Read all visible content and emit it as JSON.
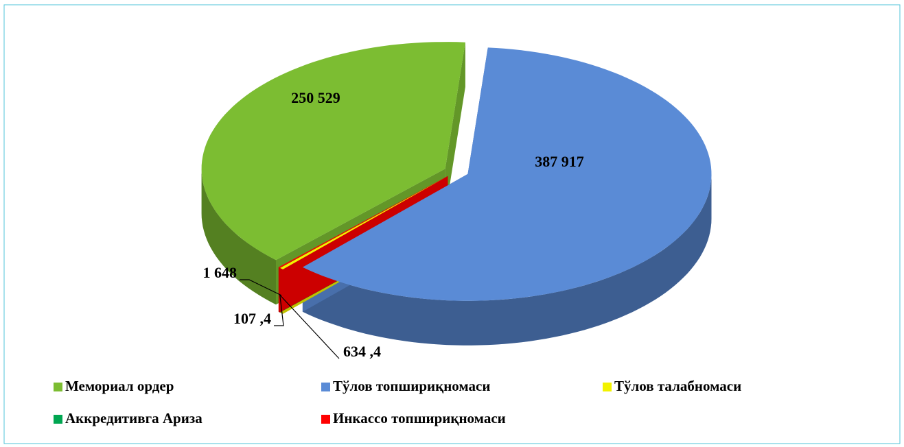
{
  "chart_data": {
    "type": "pie",
    "categories": [
      "Мемориал ордер",
      "Тўлов топшириқномаси",
      "Тўлов талабномаси",
      "Аккредитивга Ариза",
      "Инкассо топшириқномаси"
    ],
    "values": [
      250529,
      387917,
      1648,
      107.4,
      634.4
    ],
    "value_labels": [
      "250 529",
      "387 917",
      "1 648",
      "107 ,4",
      "634 ,4"
    ],
    "colors": [
      "#7cbd32",
      "#5a8bd6",
      "#f2f200",
      "#00a651",
      "#ff0000"
    ],
    "legend": "bottom"
  }
}
